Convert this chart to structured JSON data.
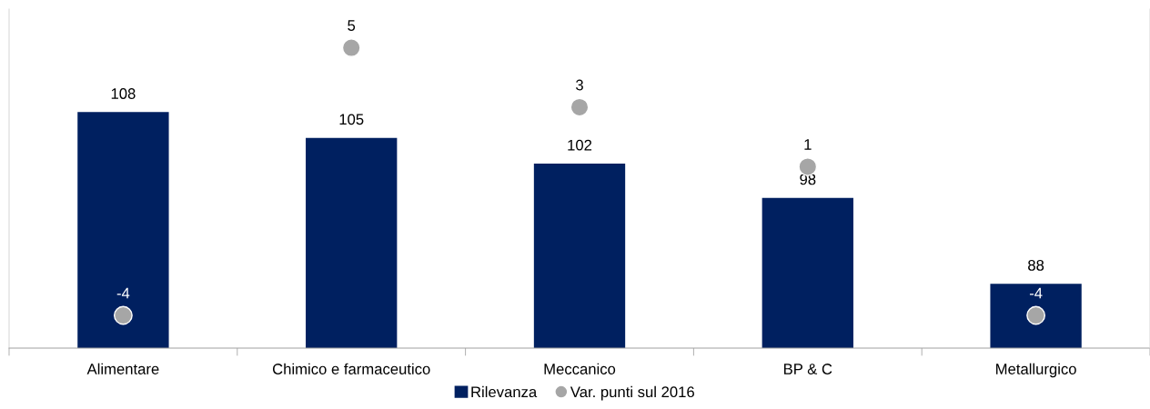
{
  "chart_data": {
    "type": "bar",
    "categories": [
      "Alimentare",
      "Chimico e farmaceutico",
      "Meccanico",
      "BP & C",
      "Metallurgico"
    ],
    "series": [
      {
        "name": "Rilevanza",
        "color": "#002060",
        "values": [
          108,
          105,
          102,
          98,
          88
        ]
      },
      {
        "name": "Var. punti sul 2016",
        "type": "scatter",
        "axis": "y2",
        "color": "#a6a6a6",
        "values": [
          -4,
          5,
          3,
          1,
          -4
        ]
      }
    ],
    "ylim": [
      80.5,
      120
    ],
    "y2lim": [
      -5.1,
      6.3
    ],
    "tick_labels": "x",
    "data_labels": true,
    "legend": "bottom",
    "marker": "circle",
    "grid": false
  }
}
